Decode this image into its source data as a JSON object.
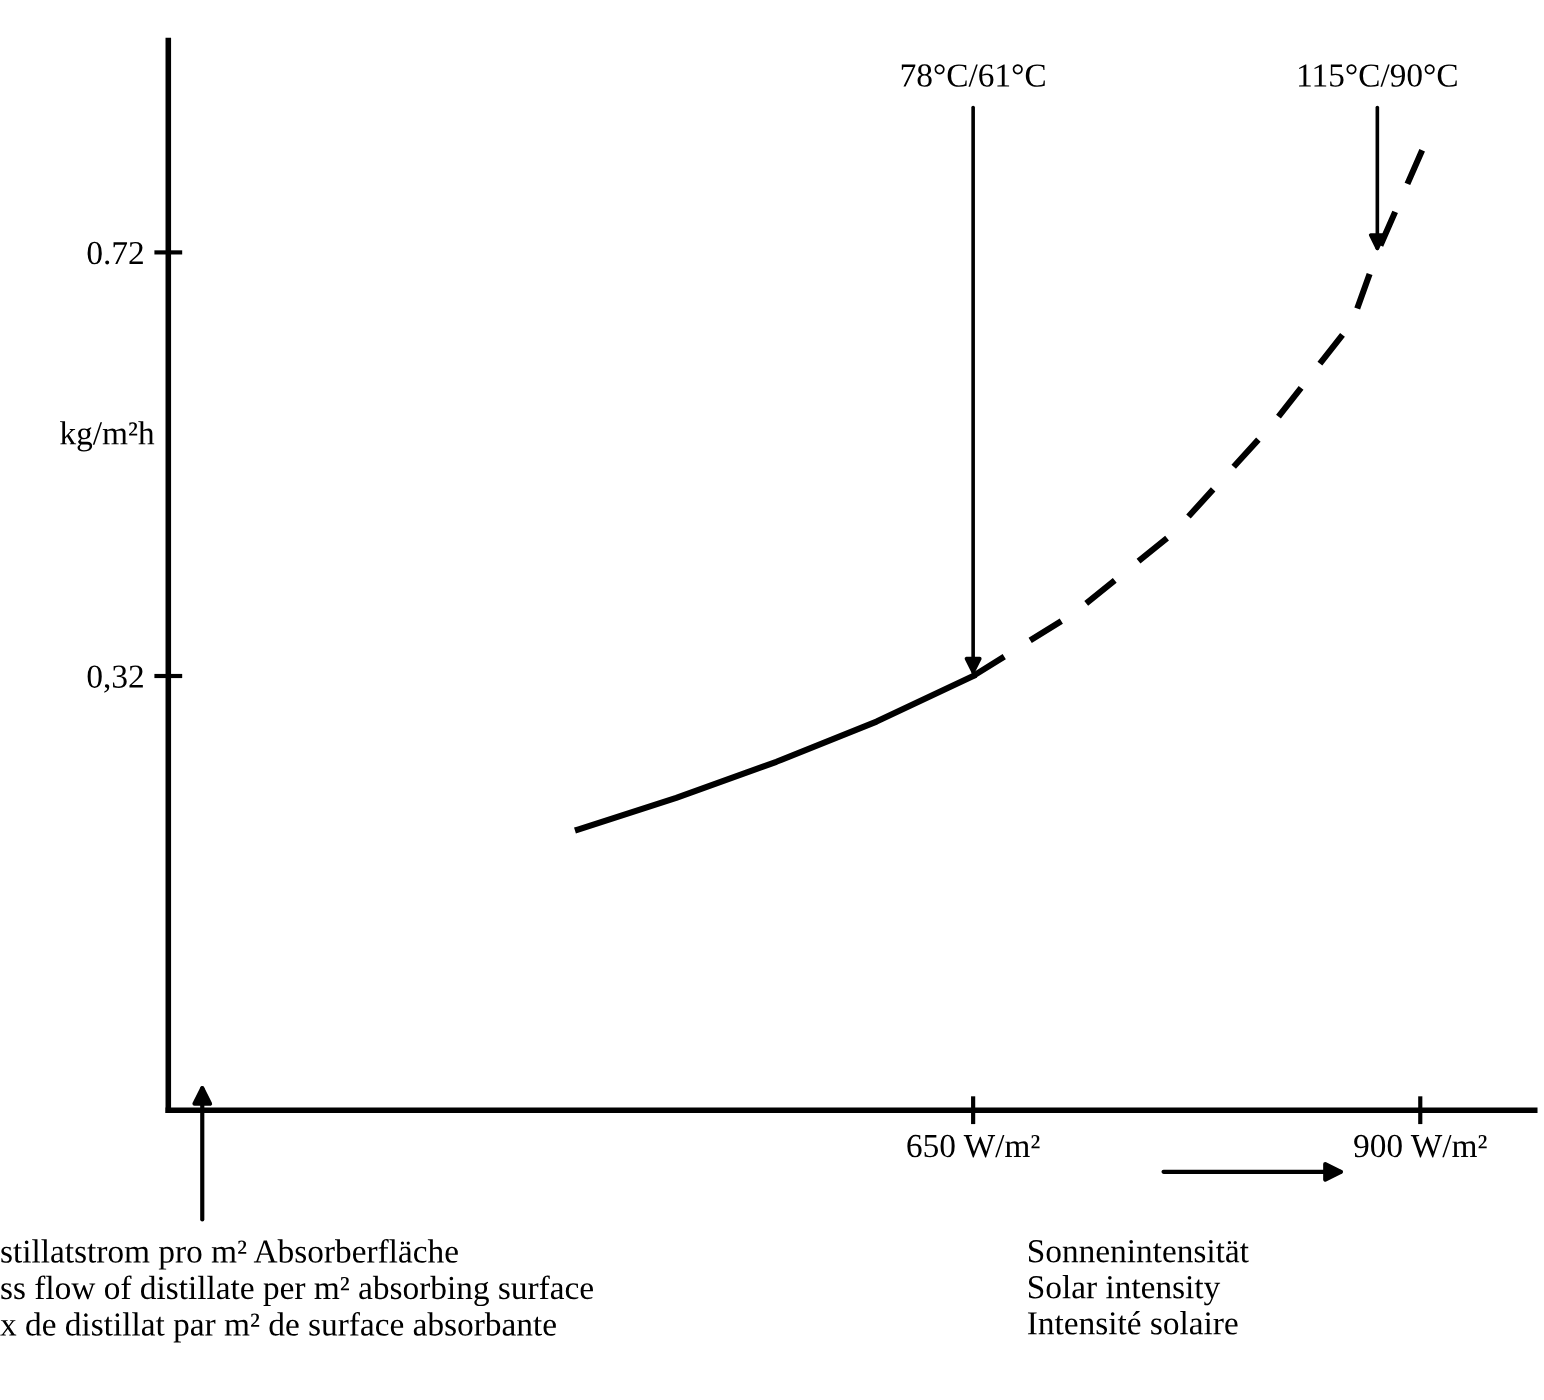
{
  "chart_data": {
    "type": "line",
    "ylabel": "kg/m²h",
    "xlabel": "Sonnenintensität\nSolar intensity\nIntensité solaire",
    "xlim": [
      200,
      964
    ],
    "ylim": [
      -0.09,
      0.92
    ],
    "xticks": [
      {
        "value": 650,
        "label": "650 W/m²"
      },
      {
        "value": 900,
        "label": "900 W/m²"
      }
    ],
    "yticks": [
      0.72,
      {
        "value": 0.32,
        "label": "0,32"
      }
    ],
    "grid": false,
    "series": [
      {
        "color": "#000000",
        "line_style": "solid",
        "x": [
          429,
          484,
          540,
          596,
          650
        ],
        "values": [
          0.175,
          0.205,
          0.239,
          0.277,
          0.32
        ]
      },
      {
        "color": "#000000",
        "line_style": "dashed",
        "x": [
          650,
          707,
          762,
          818,
          862,
          876,
          902
        ],
        "values": [
          0.32,
          0.38,
          0.455,
          0.559,
          0.654,
          0.72,
          0.82
        ]
      }
    ],
    "annotations": [
      {
        "text": "78°C/61°C",
        "x": 650,
        "y": 0.32
      },
      {
        "text": "115°C/90°C",
        "x": 876,
        "y": 0.72
      },
      "stillatstrom pro m² Absorberfläche\nss flow of distillate per m² absorbing surface\nx de distillat par m² de surface absorbante"
    ]
  }
}
